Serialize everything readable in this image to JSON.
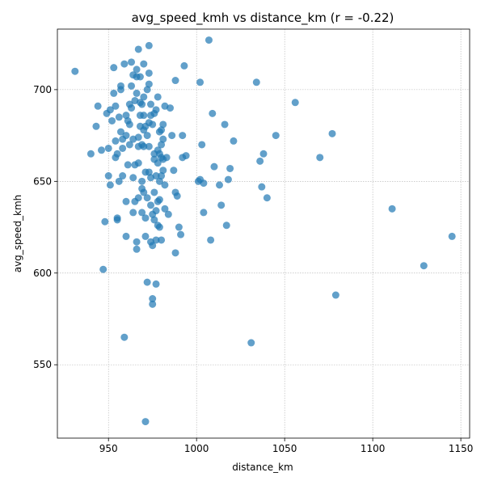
{
  "chart_data": {
    "type": "scatter",
    "title": "avg_speed_kmh vs distance_km (r = -0.22)",
    "xlabel": "distance_km",
    "ylabel": "avg_speed_kmh",
    "xlim": [
      921,
      1155
    ],
    "ylim": [
      510,
      733
    ],
    "xticks": [
      950,
      1000,
      1050,
      1100,
      1150
    ],
    "yticks": [
      550,
      600,
      650,
      700
    ],
    "grid": true,
    "color": "#1f77b4",
    "points": [
      [
        931,
        710
      ],
      [
        940,
        665
      ],
      [
        943,
        680
      ],
      [
        944,
        691
      ],
      [
        946,
        667
      ],
      [
        947,
        602
      ],
      [
        948,
        628
      ],
      [
        949,
        687
      ],
      [
        950,
        668
      ],
      [
        950,
        653
      ],
      [
        951,
        648
      ],
      [
        951,
        689
      ],
      [
        952,
        683
      ],
      [
        953,
        712
      ],
      [
        953,
        698
      ],
      [
        954,
        691
      ],
      [
        954,
        672
      ],
      [
        954,
        663
      ],
      [
        955,
        630
      ],
      [
        955,
        629
      ],
      [
        955,
        665
      ],
      [
        956,
        650
      ],
      [
        956,
        685
      ],
      [
        957,
        677
      ],
      [
        957,
        702
      ],
      [
        957,
        700
      ],
      [
        958,
        653
      ],
      [
        958,
        668
      ],
      [
        958,
        673
      ],
      [
        959,
        565
      ],
      [
        959,
        714
      ],
      [
        960,
        620
      ],
      [
        960,
        639
      ],
      [
        960,
        675
      ],
      [
        960,
        686
      ],
      [
        961,
        683
      ],
      [
        961,
        659
      ],
      [
        962,
        681
      ],
      [
        962,
        670
      ],
      [
        962,
        692
      ],
      [
        963,
        715
      ],
      [
        963,
        702
      ],
      [
        963,
        690
      ],
      [
        964,
        708
      ],
      [
        964,
        673
      ],
      [
        964,
        652
      ],
      [
        964,
        633
      ],
      [
        965,
        639
      ],
      [
        965,
        659
      ],
      [
        965,
        694
      ],
      [
        966,
        707
      ],
      [
        966,
        711
      ],
      [
        966,
        698
      ],
      [
        966,
        617
      ],
      [
        966,
        613
      ],
      [
        967,
        722
      ],
      [
        967,
        674
      ],
      [
        967,
        669
      ],
      [
        967,
        641
      ],
      [
        967,
        660
      ],
      [
        968,
        680
      ],
      [
        968,
        686
      ],
      [
        968,
        693
      ],
      [
        968,
        707
      ],
      [
        969,
        692
      ],
      [
        969,
        670
      ],
      [
        969,
        650
      ],
      [
        969,
        646
      ],
      [
        969,
        633
      ],
      [
        970,
        714
      ],
      [
        970,
        696
      ],
      [
        970,
        686
      ],
      [
        970,
        678
      ],
      [
        970,
        669
      ],
      [
        970,
        644
      ],
      [
        971,
        620
      ],
      [
        971,
        655
      ],
      [
        971,
        630
      ],
      [
        971,
        680
      ],
      [
        971,
        519
      ],
      [
        972,
        700
      ],
      [
        972,
        675
      ],
      [
        972,
        641
      ],
      [
        972,
        595
      ],
      [
        973,
        724
      ],
      [
        973,
        703
      ],
      [
        973,
        709
      ],
      [
        973,
        682
      ],
      [
        973,
        669
      ],
      [
        973,
        655
      ],
      [
        974,
        692
      ],
      [
        974,
        686
      ],
      [
        974,
        617
      ],
      [
        974,
        637
      ],
      [
        974,
        652
      ],
      [
        975,
        681
      ],
      [
        975,
        632
      ],
      [
        975,
        615
      ],
      [
        975,
        586
      ],
      [
        975,
        583
      ],
      [
        976,
        687
      ],
      [
        976,
        629
      ],
      [
        976,
        644
      ],
      [
        976,
        665
      ],
      [
        976,
        662
      ],
      [
        977,
        689
      ],
      [
        977,
        594
      ],
      [
        977,
        653
      ],
      [
        977,
        634
      ],
      [
        977,
        618
      ],
      [
        978,
        696
      ],
      [
        978,
        667
      ],
      [
        978,
        639
      ],
      [
        978,
        626
      ],
      [
        978,
        660
      ],
      [
        979,
        677
      ],
      [
        979,
        665
      ],
      [
        979,
        650
      ],
      [
        979,
        640
      ],
      [
        979,
        625
      ],
      [
        980,
        678
      ],
      [
        980,
        663
      ],
      [
        980,
        670
      ],
      [
        980,
        653
      ],
      [
        980,
        618
      ],
      [
        981,
        681
      ],
      [
        981,
        673
      ],
      [
        981,
        662
      ],
      [
        981,
        656
      ],
      [
        982,
        691
      ],
      [
        982,
        648
      ],
      [
        982,
        635
      ],
      [
        983,
        663
      ],
      [
        984,
        632
      ],
      [
        985,
        690
      ],
      [
        986,
        675
      ],
      [
        987,
        656
      ],
      [
        988,
        705
      ],
      [
        988,
        644
      ],
      [
        988,
        611
      ],
      [
        989,
        642
      ],
      [
        990,
        625
      ],
      [
        991,
        621
      ],
      [
        992,
        663
      ],
      [
        992,
        675
      ],
      [
        993,
        713
      ],
      [
        994,
        664
      ],
      [
        1001,
        650
      ],
      [
        1002,
        704
      ],
      [
        1002,
        651
      ],
      [
        1003,
        670
      ],
      [
        1004,
        633
      ],
      [
        1004,
        649
      ],
      [
        1007,
        727
      ],
      [
        1008,
        618
      ],
      [
        1009,
        687
      ],
      [
        1010,
        658
      ],
      [
        1013,
        648
      ],
      [
        1014,
        637
      ],
      [
        1016,
        681
      ],
      [
        1017,
        626
      ],
      [
        1018,
        651
      ],
      [
        1019,
        657
      ],
      [
        1021,
        672
      ],
      [
        1031,
        562
      ],
      [
        1034,
        704
      ],
      [
        1036,
        661
      ],
      [
        1037,
        647
      ],
      [
        1038,
        665
      ],
      [
        1040,
        641
      ],
      [
        1045,
        675
      ],
      [
        1056,
        693
      ],
      [
        1070,
        663
      ],
      [
        1077,
        676
      ],
      [
        1079,
        588
      ],
      [
        1111,
        635
      ],
      [
        1129,
        604
      ],
      [
        1145,
        620
      ]
    ]
  }
}
